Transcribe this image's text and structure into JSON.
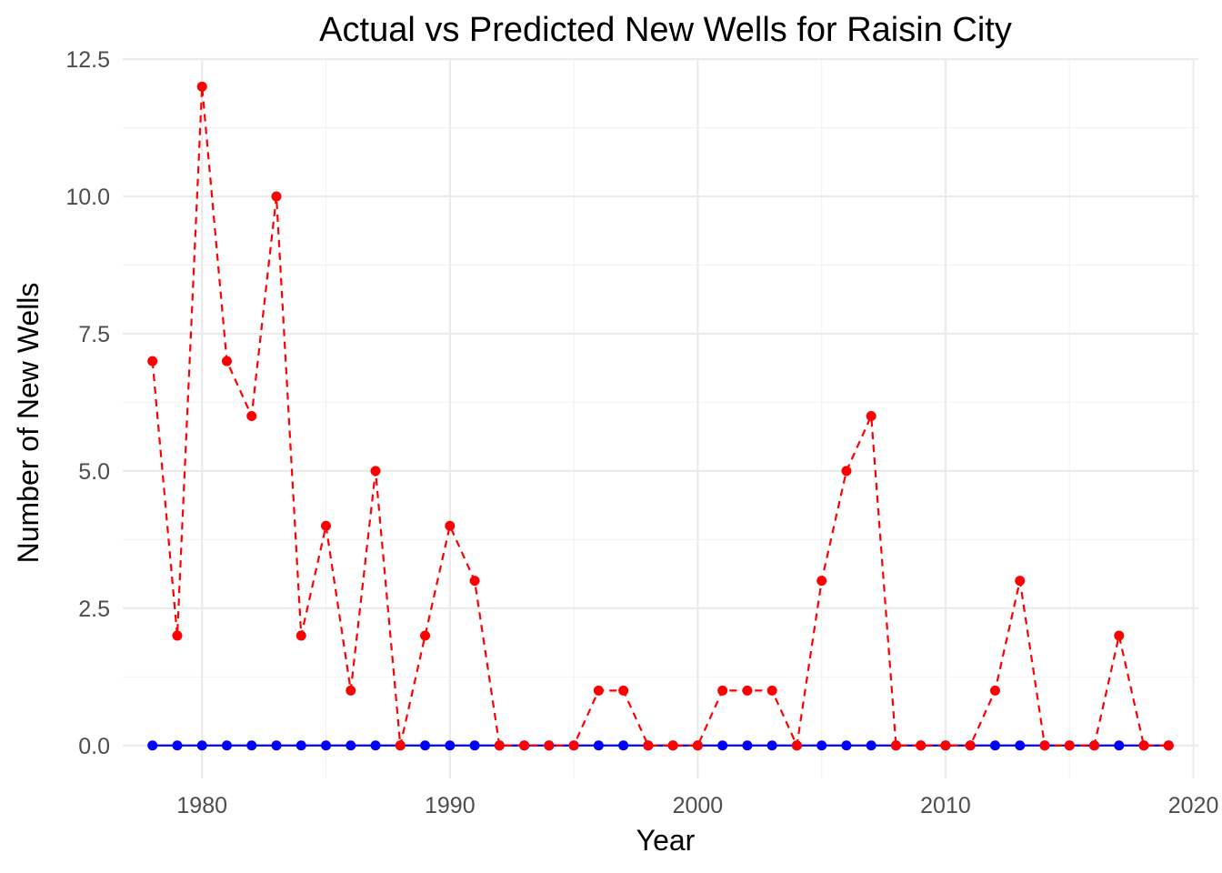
{
  "chart_data": {
    "type": "line",
    "title": "Actual vs Predicted New Wells for Raisin City",
    "xlabel": "Year",
    "ylabel": "Number of New Wells",
    "xlim": [
      1976.8,
      2020.2
    ],
    "ylim": [
      -0.6,
      12.5
    ],
    "x_ticks": [
      1980,
      1990,
      2000,
      2010,
      2020
    ],
    "x_tick_labels": [
      "1980",
      "1990",
      "2000",
      "2010",
      "2020"
    ],
    "y_ticks": [
      0,
      2.5,
      5,
      7.5,
      10,
      12.5
    ],
    "y_tick_labels": [
      "0.0",
      "2.5",
      "5.0",
      "7.5",
      "10.0",
      "12.5"
    ],
    "grid": true,
    "legend": "none",
    "x": [
      1978,
      1979,
      1980,
      1981,
      1982,
      1983,
      1984,
      1985,
      1986,
      1987,
      1988,
      1989,
      1990,
      1991,
      1992,
      1993,
      1994,
      1995,
      1996,
      1997,
      1998,
      1999,
      2000,
      2001,
      2002,
      2003,
      2004,
      2005,
      2006,
      2007,
      2008,
      2009,
      2010,
      2011,
      2012,
      2013,
      2014,
      2015,
      2016,
      2017,
      2018,
      2019
    ],
    "series": [
      {
        "color": "#0000ff",
        "line_style": "solid",
        "values": [
          0,
          0,
          0,
          0,
          0,
          0,
          0,
          0,
          0,
          0,
          0,
          0,
          0,
          0,
          0,
          0,
          0,
          0,
          0,
          0,
          0,
          0,
          0,
          0,
          0,
          0,
          0,
          0,
          0,
          0,
          0,
          0,
          0,
          0,
          0,
          0,
          0,
          0,
          0,
          0,
          0,
          0
        ]
      },
      {
        "color": "#ff0000",
        "line_style": "dashed",
        "values": [
          7,
          2,
          12,
          7,
          6,
          10,
          2,
          4,
          1,
          5,
          0,
          2,
          4,
          3,
          0,
          0,
          0,
          0,
          1,
          1,
          0,
          0,
          0,
          1,
          1,
          1,
          0,
          3,
          5,
          6,
          0,
          0,
          0,
          0,
          1,
          3,
          0,
          0,
          0,
          2,
          0,
          0
        ]
      }
    ]
  }
}
